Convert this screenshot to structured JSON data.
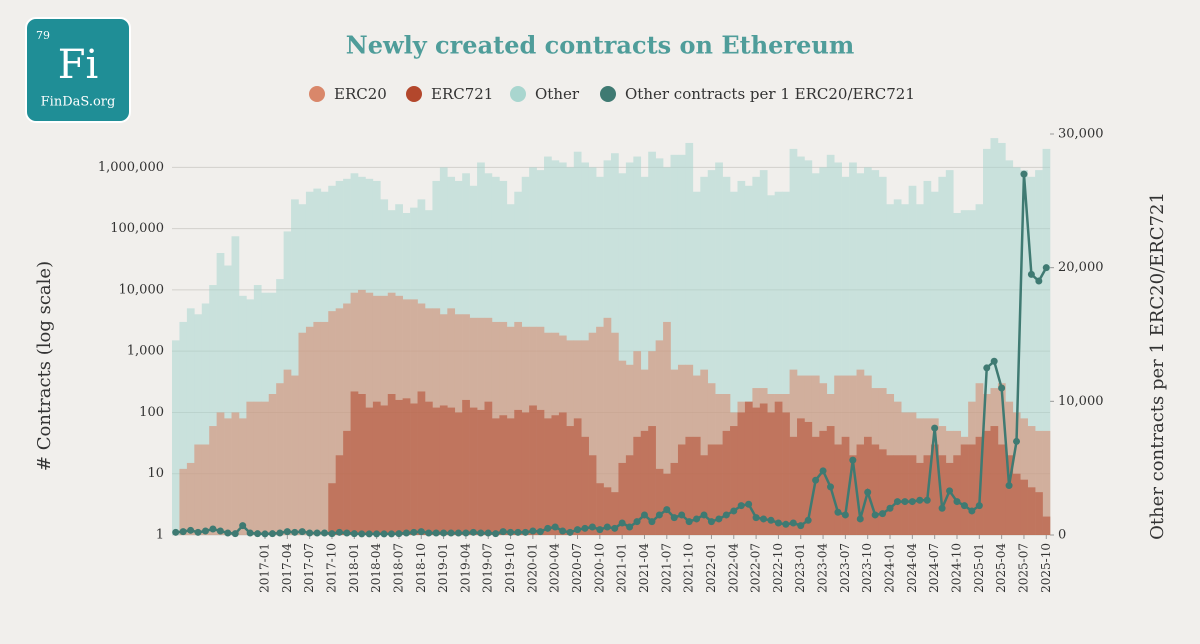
{
  "logo": {
    "number": "79",
    "symbol": "Fi",
    "site": "FinDaS.org"
  },
  "chart_data": {
    "type": "bar",
    "title": "Newly created contracts on Ethereum",
    "ylabel": "# Contracts (log scale)",
    "y2label": "Other contracts per 1 ERC20/ERC721",
    "yscale": "log",
    "ylim": [
      1,
      3500000
    ],
    "yticks": [
      1,
      10,
      100,
      {
        "value": 1000,
        "label": "1,000"
      },
      {
        "value": 10000,
        "label": "10,000"
      },
      {
        "value": 100000,
        "label": "100,000"
      },
      {
        "value": 1000000,
        "label": "1,000,000"
      }
    ],
    "y2lim": [
      0,
      30000
    ],
    "y2ticks": [
      0,
      {
        "value": 10000,
        "label": "10,000"
      },
      {
        "value": 20000,
        "label": "20,000"
      },
      {
        "value": 30000,
        "label": "30,000"
      }
    ],
    "grid": true,
    "legend": "top",
    "categories": [
      null,
      null,
      null,
      null,
      null,
      null,
      null,
      null,
      null,
      null,
      null,
      null,
      "2017-01",
      null,
      null,
      "2017-04",
      null,
      null,
      "2017-07",
      null,
      null,
      "2017-10",
      null,
      null,
      "2018-01",
      null,
      null,
      "2018-04",
      null,
      null,
      "2018-07",
      null,
      null,
      "2018-10",
      null,
      null,
      "2019-01",
      null,
      null,
      "2019-04",
      null,
      null,
      "2019-07",
      null,
      null,
      "2019-10",
      null,
      null,
      "2020-01",
      null,
      null,
      "2020-04",
      null,
      null,
      "2020-07",
      null,
      null,
      "2020-10",
      null,
      null,
      "2021-01",
      null,
      null,
      "2021-04",
      null,
      null,
      "2021-07",
      null,
      null,
      "2021-10",
      null,
      null,
      "2022-01",
      null,
      null,
      "2022-04",
      null,
      null,
      "2022-07",
      null,
      null,
      "2022-10",
      null,
      null,
      "2023-01",
      null,
      null,
      "2023-04",
      null,
      null,
      "2023-07",
      null,
      null,
      "2023-10",
      null,
      null,
      "2024-01",
      null,
      null,
      "2024-04",
      null,
      null,
      "2024-07",
      null,
      null,
      "2024-10",
      null,
      null,
      "2025-01",
      null,
      null,
      "2025-04",
      null,
      null,
      "2025-07",
      null,
      null,
      "2025-10"
    ],
    "series": [
      {
        "name": "Other",
        "color": "#a9d6cf",
        "values": [
          1500,
          3000,
          5000,
          4000,
          6000,
          12000,
          40000,
          25000,
          75000,
          8000,
          7000,
          12000,
          9000,
          9000,
          15000,
          90000,
          300000,
          250000,
          400000,
          450000,
          400000,
          500000,
          600000,
          650000,
          800000,
          700000,
          650000,
          600000,
          300000,
          200000,
          250000,
          180000,
          220000,
          300000,
          200000,
          600000,
          1000000,
          700000,
          600000,
          800000,
          500000,
          1200000,
          800000,
          700000,
          600000,
          250000,
          400000,
          700000,
          1000000,
          900000,
          1500000,
          1300000,
          1200000,
          1000000,
          1800000,
          1200000,
          1000000,
          700000,
          1300000,
          1700000,
          800000,
          1200000,
          1500000,
          700000,
          1800000,
          1400000,
          1000000,
          1600000,
          1600000,
          2500000,
          400000,
          700000,
          900000,
          1200000,
          700000,
          400000,
          600000,
          500000,
          700000,
          900000,
          350000,
          400000,
          400000,
          2000000,
          1500000,
          1300000,
          800000,
          1000000,
          1600000,
          1200000,
          700000,
          1200000,
          800000,
          1000000,
          900000,
          700000,
          250000,
          300000,
          250000,
          500000,
          250000,
          600000,
          400000,
          700000,
          900000,
          180000,
          200000,
          200000,
          250000,
          2000000,
          3000000,
          2500000,
          1300000,
          1000000,
          900000,
          700000,
          900000,
          2000000
        ]
      },
      {
        "name": "ERC20",
        "color": "#d9876a",
        "values": [
          1,
          12,
          15,
          30,
          30,
          60,
          100,
          80,
          100,
          80,
          150,
          150,
          150,
          200,
          300,
          500,
          400,
          2000,
          2500,
          3000,
          3000,
          4500,
          5000,
          6000,
          9000,
          10000,
          9000,
          8000,
          8000,
          9000,
          8000,
          7000,
          7000,
          6000,
          5000,
          5000,
          4000,
          5000,
          4000,
          4000,
          3500,
          3500,
          3500,
          3000,
          3000,
          2500,
          3000,
          2500,
          2500,
          2500,
          2000,
          2000,
          1800,
          1500,
          1500,
          1500,
          2000,
          2500,
          3500,
          2000,
          700,
          600,
          1000,
          500,
          1000,
          1500,
          3000,
          500,
          600,
          600,
          400,
          500,
          300,
          200,
          200,
          100,
          150,
          150,
          250,
          250,
          200,
          200,
          200,
          500,
          400,
          400,
          400,
          300,
          200,
          400,
          400,
          400,
          500,
          400,
          250,
          250,
          200,
          150,
          100,
          100,
          80,
          80,
          80,
          60,
          50,
          50,
          40,
          150,
          300,
          200,
          250,
          300,
          150,
          100,
          80,
          60,
          50,
          50
        ]
      },
      {
        "name": "ERC721",
        "color": "#b3472c",
        "values": [
          null,
          null,
          null,
          null,
          null,
          null,
          null,
          null,
          null,
          null,
          null,
          null,
          null,
          null,
          null,
          null,
          null,
          null,
          null,
          null,
          null,
          7,
          20,
          50,
          220,
          200,
          120,
          150,
          130,
          200,
          160,
          170,
          140,
          220,
          150,
          120,
          130,
          120,
          100,
          160,
          120,
          110,
          150,
          80,
          90,
          80,
          110,
          100,
          130,
          110,
          80,
          90,
          100,
          60,
          80,
          40,
          20,
          7,
          6,
          5,
          15,
          20,
          40,
          50,
          60,
          12,
          10,
          15,
          30,
          40,
          40,
          20,
          30,
          30,
          50,
          60,
          100,
          150,
          120,
          140,
          100,
          150,
          100,
          40,
          80,
          70,
          40,
          50,
          60,
          30,
          40,
          20,
          30,
          40,
          30,
          25,
          20,
          20,
          20,
          20,
          15,
          20,
          30,
          20,
          15,
          20,
          30,
          30,
          40,
          50,
          60,
          30,
          20,
          10,
          8,
          6,
          5,
          2
        ]
      },
      {
        "name": "Other contracts per 1 ERC20/ERC721",
        "color": "#3f7a72",
        "axis": "y2",
        "type": "line",
        "values": [
          200,
          250,
          350,
          200,
          300,
          450,
          300,
          150,
          100,
          700,
          150,
          100,
          80,
          100,
          150,
          250,
          200,
          250,
          150,
          150,
          150,
          100,
          200,
          150,
          100,
          80,
          80,
          80,
          80,
          80,
          100,
          150,
          200,
          250,
          150,
          150,
          150,
          150,
          150,
          150,
          200,
          150,
          150,
          100,
          250,
          200,
          200,
          200,
          300,
          250,
          500,
          600,
          300,
          200,
          400,
          500,
          600,
          400,
          600,
          500,
          900,
          600,
          1000,
          1500,
          1000,
          1500,
          1900,
          1300,
          1500,
          1000,
          1200,
          1500,
          1000,
          1200,
          1500,
          1800,
          2200,
          2300,
          1300,
          1200,
          1100,
          900,
          800,
          900,
          700,
          1100,
          4100,
          4800,
          3600,
          1700,
          1500,
          5600,
          1200,
          3200,
          1500,
          1600,
          2000,
          2500,
          2500,
          2500,
          2600,
          2600,
          8000,
          2000,
          3300,
          2500,
          2200,
          1800,
          2200,
          12500,
          13000,
          11000,
          3700,
          7000,
          27000,
          19500,
          19000,
          20000
        ]
      }
    ]
  }
}
